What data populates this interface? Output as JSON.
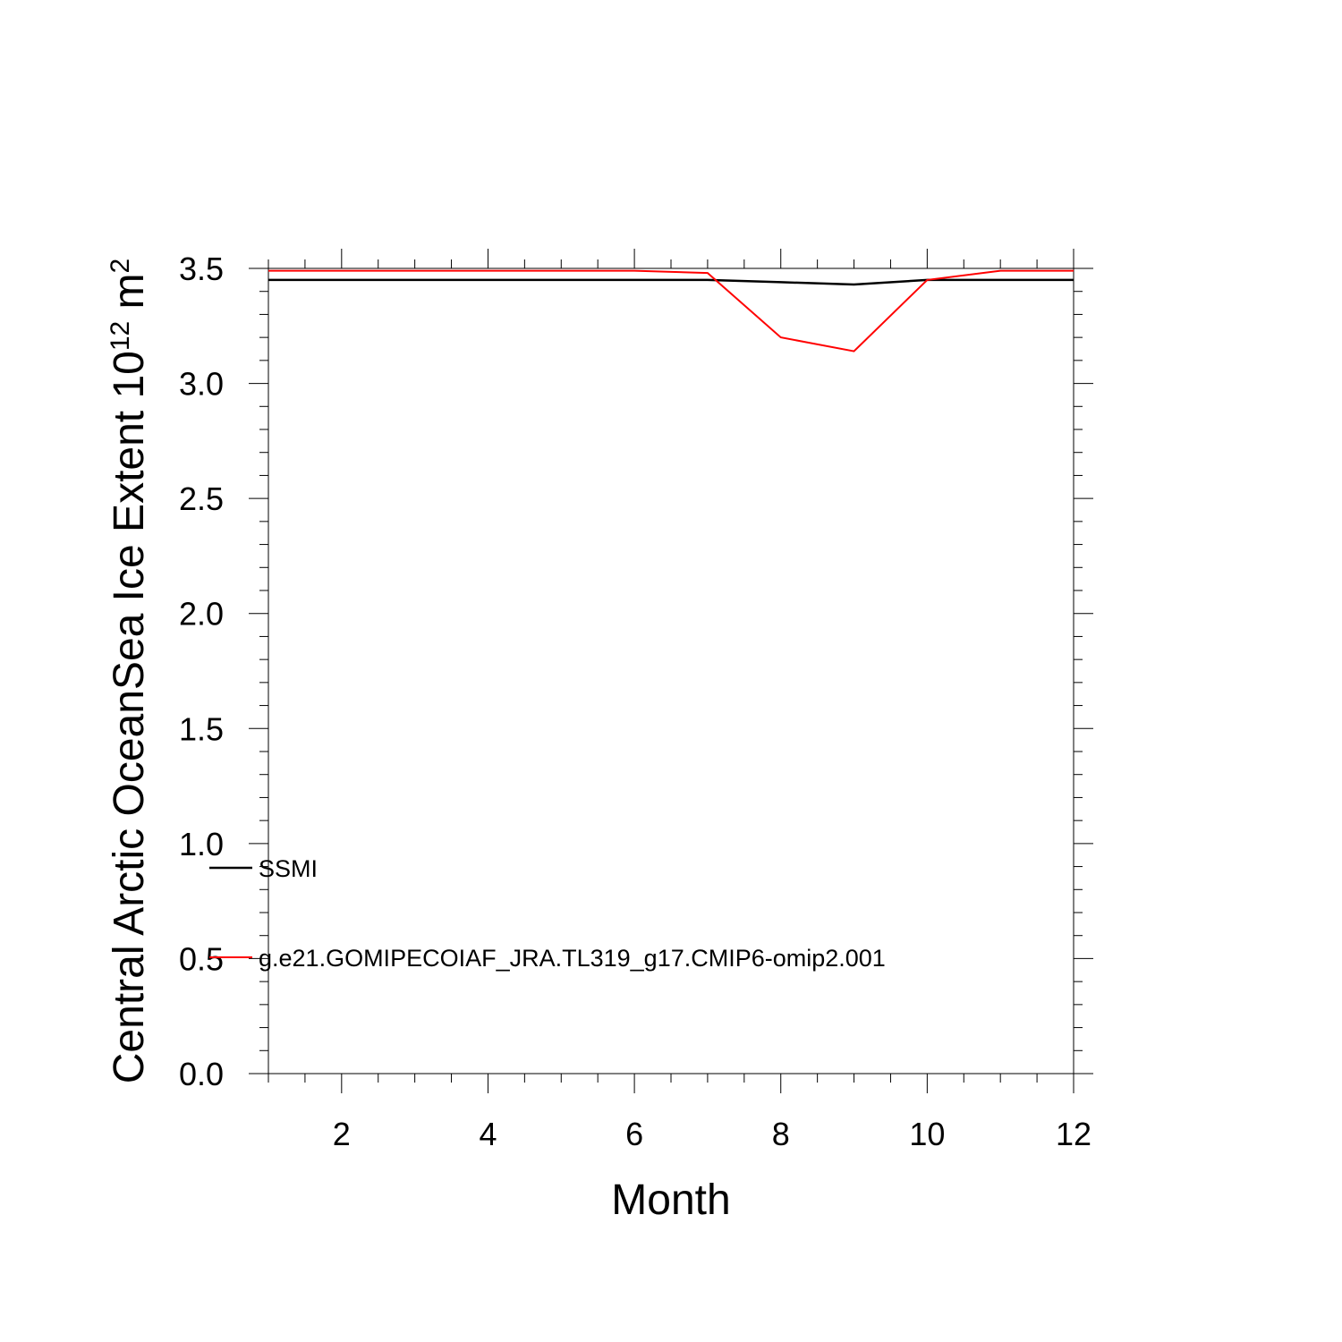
{
  "chart_data": {
    "type": "line",
    "xlabel": "Month",
    "ylabel": {
      "text": "Central Arctic OceanSea Ice Extent 10",
      "exponent": "12",
      "unit": " m",
      "unit_exponent": "2"
    },
    "xlim": [
      1,
      12
    ],
    "ylim": [
      0,
      3.5
    ],
    "x_ticks": [
      2,
      4,
      6,
      8,
      10,
      12
    ],
    "x_tick_labels": [
      "2",
      "4",
      "6",
      "8",
      "10",
      "12"
    ],
    "y_ticks": [
      0,
      0.5,
      1,
      1.5,
      2,
      2.5,
      3,
      3.5
    ],
    "y_tick_labels": [
      "0.0",
      "0.5",
      "1.0",
      "1.5",
      "2.0",
      "2.5",
      "3.0",
      "3.5"
    ],
    "grid": false,
    "legend_position": "lower-left inside",
    "x": [
      1,
      2,
      3,
      4,
      5,
      6,
      7,
      8,
      9,
      10,
      11,
      12
    ],
    "series": [
      {
        "name": "SSMI",
        "color": "#000000",
        "values": [
          3.45,
          3.45,
          3.45,
          3.45,
          3.45,
          3.45,
          3.45,
          3.44,
          3.43,
          3.45,
          3.45,
          3.45
        ]
      },
      {
        "name": "g.e21.GOMIPECOIAF_JRA.TL319_g17.CMIP6-omip2.001",
        "color": "#ff0000",
        "values": [
          3.49,
          3.49,
          3.49,
          3.49,
          3.49,
          3.49,
          3.48,
          3.2,
          3.14,
          3.45,
          3.49,
          3.49
        ]
      }
    ]
  }
}
